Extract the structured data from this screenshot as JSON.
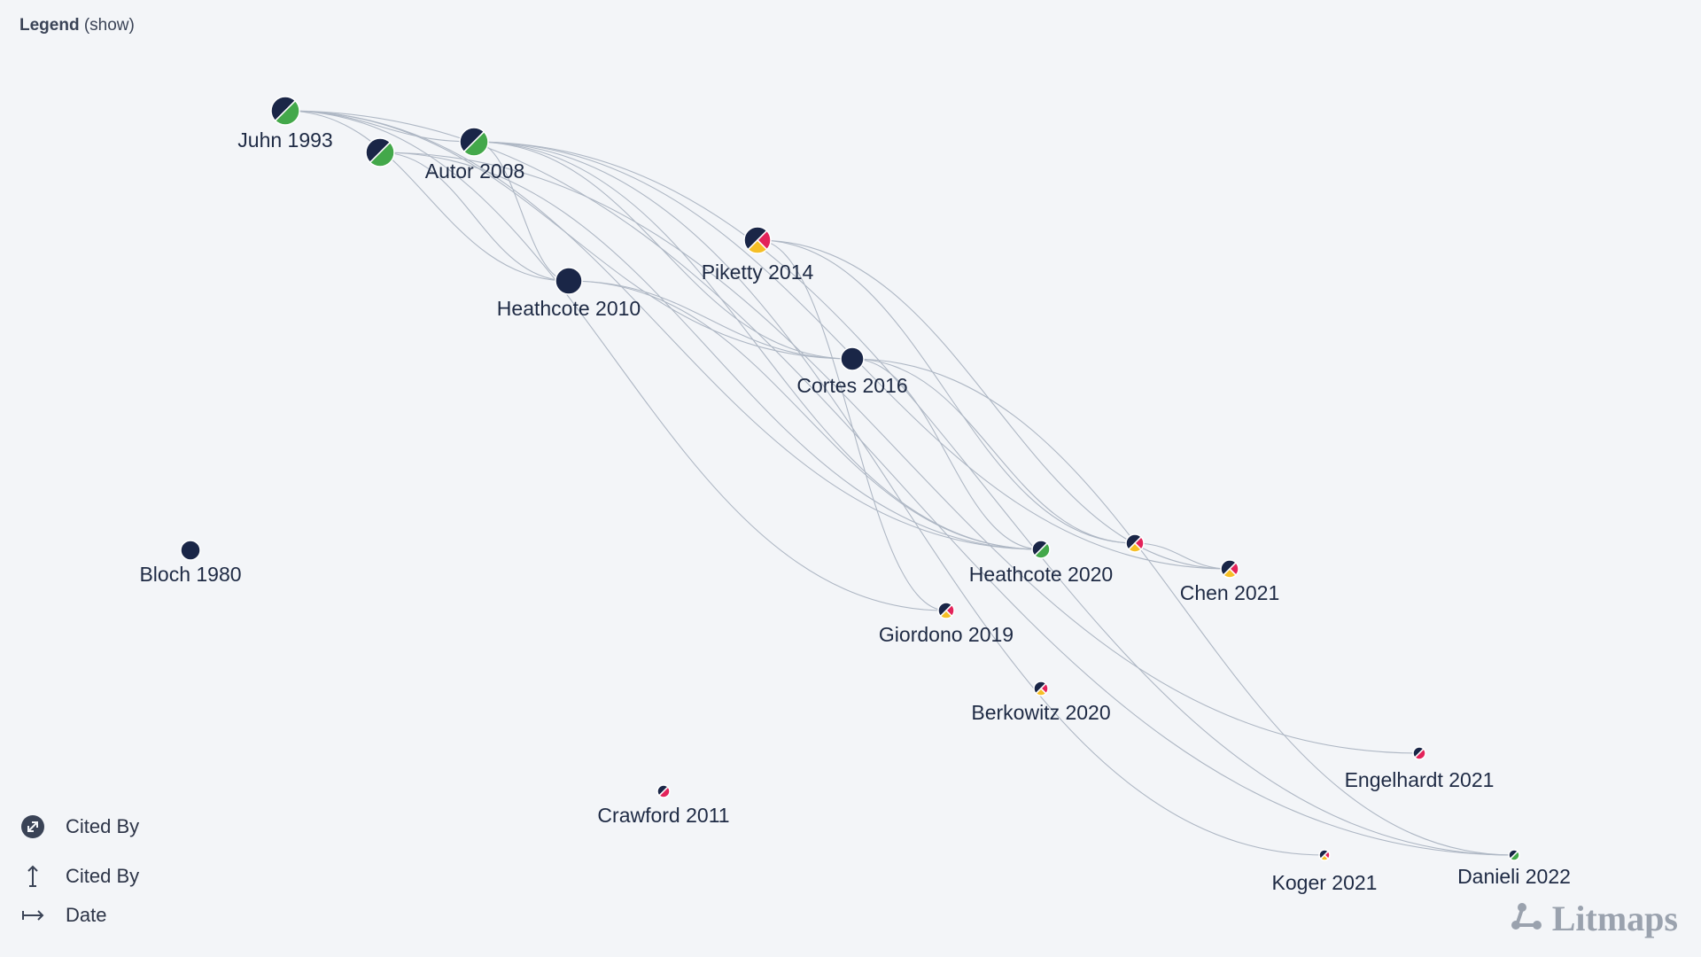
{
  "legend": {
    "title": "Legend",
    "toggle": "(show)"
  },
  "keys": [
    {
      "icon": "expand-circle-icon",
      "label": "Cited By"
    },
    {
      "icon": "vertical-arrow-icon",
      "label": "Cited By"
    },
    {
      "icon": "horizontal-arrow-icon",
      "label": "Date"
    }
  ],
  "brand": "Litmaps",
  "colors": {
    "navy": "#1a2647",
    "green": "#43a84a",
    "red": "#e3235a",
    "yellow": "#f6bf25",
    "edge": "#aeb7c4",
    "background": "#f3f5f8"
  },
  "papers": [
    {
      "id": "juhn1993",
      "label": "Juhn 1993",
      "slices": [
        "navy",
        "green"
      ]
    },
    {
      "id": "autor2008a",
      "label": "",
      "slices": [
        "navy",
        "green"
      ]
    },
    {
      "id": "autor2008",
      "label": "Autor 2008",
      "slices": [
        "navy",
        "green"
      ]
    },
    {
      "id": "piketty2014",
      "label": "Piketty 2014",
      "slices": [
        "navy",
        "red",
        "yellow"
      ]
    },
    {
      "id": "heathcote2010",
      "label": "Heathcote 2010",
      "slices": [
        "navy"
      ]
    },
    {
      "id": "cortes2016",
      "label": "Cortes 2016",
      "slices": [
        "navy"
      ]
    },
    {
      "id": "bloch1980",
      "label": "Bloch 1980",
      "slices": [
        "navy"
      ]
    },
    {
      "id": "heathcote2020",
      "label": "Heathcote 2020",
      "slices": [
        "navy",
        "green"
      ]
    },
    {
      "id": "chen2021a",
      "label": "",
      "slices": [
        "navy",
        "red",
        "yellow"
      ]
    },
    {
      "id": "chen2021",
      "label": "Chen 2021",
      "slices": [
        "navy",
        "red",
        "yellow"
      ]
    },
    {
      "id": "giordono2019",
      "label": "Giordono 2019",
      "slices": [
        "navy",
        "red",
        "yellow"
      ]
    },
    {
      "id": "berkowitz2020",
      "label": "Berkowitz 2020",
      "slices": [
        "navy",
        "red",
        "yellow"
      ]
    },
    {
      "id": "crawford2011",
      "label": "Crawford 2011",
      "slices": [
        "navy",
        "red"
      ]
    },
    {
      "id": "engelhardt2021",
      "label": "Engelhardt 2021",
      "slices": [
        "navy",
        "red"
      ]
    },
    {
      "id": "koger2021",
      "label": "Koger 2021",
      "slices": [
        "navy",
        "red",
        "yellow"
      ]
    },
    {
      "id": "danieli2022",
      "label": "Danieli 2022",
      "slices": [
        "navy",
        "green"
      ]
    }
  ],
  "citations": [
    [
      "juhn1993",
      "autor2008"
    ],
    [
      "juhn1993",
      "heathcote2010"
    ],
    [
      "juhn1993",
      "cortes2016"
    ],
    [
      "juhn1993",
      "heathcote2020"
    ],
    [
      "juhn1993",
      "danieli2022"
    ],
    [
      "juhn1993",
      "giordono2019"
    ],
    [
      "autor2008a",
      "heathcote2010"
    ],
    [
      "autor2008a",
      "heathcote2020"
    ],
    [
      "autor2008a",
      "engelhardt2021"
    ],
    [
      "autor2008",
      "cortes2016"
    ],
    [
      "autor2008",
      "heathcote2020"
    ],
    [
      "autor2008",
      "chen2021"
    ],
    [
      "autor2008",
      "koger2021"
    ],
    [
      "autor2008",
      "heathcote2010"
    ],
    [
      "autor2008",
      "danieli2022"
    ],
    [
      "piketty2014",
      "chen2021"
    ],
    [
      "piketty2014",
      "chen2021a"
    ],
    [
      "piketty2014",
      "giordono2019"
    ],
    [
      "heathcote2010",
      "cortes2016"
    ],
    [
      "heathcote2010",
      "heathcote2020"
    ],
    [
      "cortes2016",
      "heathcote2020"
    ],
    [
      "cortes2016",
      "chen2021a"
    ],
    [
      "cortes2016",
      "danieli2022"
    ],
    [
      "chen2021a",
      "chen2021"
    ]
  ]
}
